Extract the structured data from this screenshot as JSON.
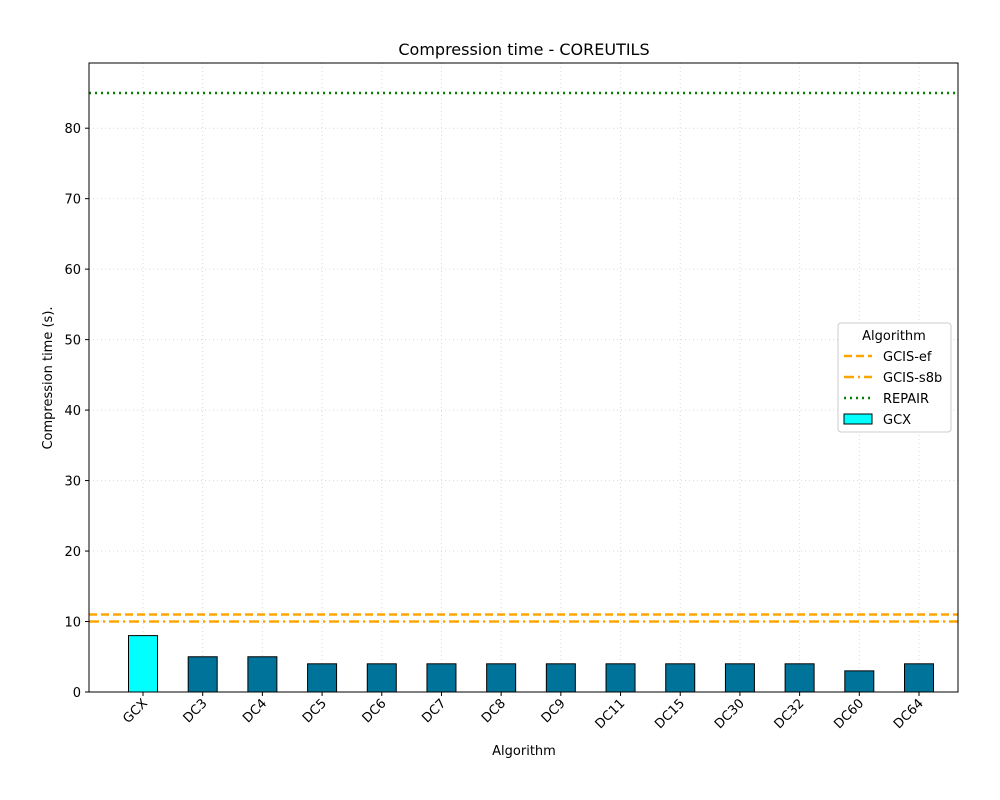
{
  "chart_data": {
    "type": "bar",
    "title": "Compression time -  COREUTILS",
    "xlabel": "Algorithm",
    "ylabel": "Compression time (s).",
    "categories": [
      "GCX",
      "DC3",
      "DC4",
      "DC5",
      "DC6",
      "DC7",
      "DC8",
      "DC9",
      "DC11",
      "DC15",
      "DC30",
      "DC32",
      "DC60",
      "DC64"
    ],
    "values": [
      8,
      5,
      5,
      4,
      4,
      4,
      4,
      4,
      4,
      4,
      4,
      4,
      3,
      4
    ],
    "ylim": [
      0,
      89.25
    ],
    "yticks": [
      0,
      10,
      20,
      30,
      40,
      50,
      60,
      70,
      80
    ],
    "grid": true,
    "reference_lines": [
      {
        "name": "GCIS-ef",
        "value": 11,
        "style": "dashed",
        "color": "#ffa500"
      },
      {
        "name": "GCIS-s8b",
        "value": 10,
        "style": "dashdot",
        "color": "#ffa500"
      },
      {
        "name": "REPAIR",
        "value": 85,
        "style": "dotted",
        "color": "#008000"
      }
    ],
    "bar_colors": {
      "GCX": "#00ffff",
      "default": "#00739a"
    },
    "legend": {
      "title": "Algorithm",
      "placement": "center-right",
      "entries": [
        "GCIS-ef",
        "GCIS-s8b",
        "REPAIR",
        "GCX"
      ]
    }
  }
}
